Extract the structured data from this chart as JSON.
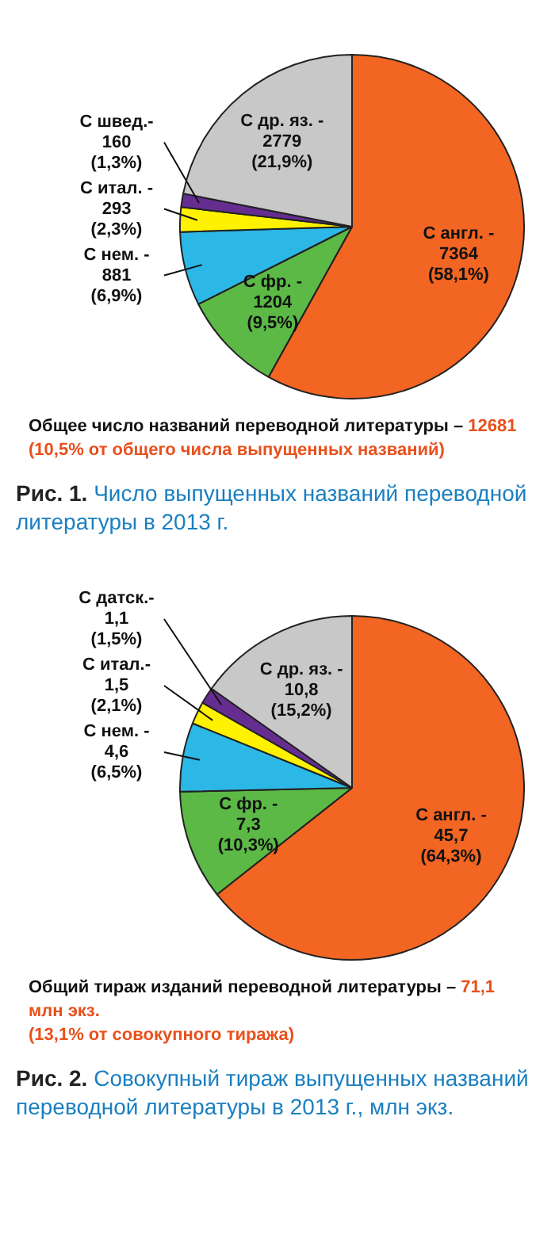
{
  "chart_data": [
    {
      "type": "pie",
      "title": "Рис. 1.",
      "subtitle": "Число выпущенных названий переводной литературы в 2013 г.",
      "categories": [
        "С англ. -",
        "С фр. -",
        "С нем. -",
        "С итал. -",
        "С швед.-",
        "С др. яз. -"
      ],
      "values": [
        7364,
        1204,
        881,
        293,
        160,
        2779
      ],
      "value_labels": [
        "7364\n(58,1%)",
        "1204\n(9,5%)",
        "881\n(6,9%)",
        "293\n(2,3%)",
        "160\n(1,3%)",
        "2779\n(21,9%)"
      ],
      "colors": [
        "#f26522",
        "#5cb946",
        "#2cb8e6",
        "#fff200",
        "#662d91",
        "#c8c8c8"
      ],
      "annotations": [
        "Общее число названий переводной литературы –",
        "12681",
        "(10,5% от общего числа выпущенных названий)"
      ]
    },
    {
      "type": "pie",
      "title": "Рис. 2.",
      "subtitle": "Совокупный тираж выпущенных названий переводной литературы в 2013 г., млн экз.",
      "categories": [
        "С англ. -",
        "С фр. -",
        "С нем. -",
        "С итал.-",
        "С датск.-",
        "С др. яз. -"
      ],
      "values": [
        45.7,
        7.3,
        4.6,
        1.5,
        1.1,
        10.8
      ],
      "value_labels": [
        "45,7\n(64,3%)",
        "7,3\n(10,3%)",
        "4,6\n(6,5%)",
        "1,5\n(2,1%)",
        "1,1\n(1,5%)",
        "10,8\n(15,2%)"
      ],
      "colors": [
        "#f26522",
        "#5cb946",
        "#2cb8e6",
        "#fff200",
        "#662d91",
        "#c8c8c8"
      ],
      "annotations": [
        "Общий тираж изданий переводной литературы –",
        "71,1 млн экз.",
        "(13,1% от совокупного тиража)"
      ]
    }
  ]
}
